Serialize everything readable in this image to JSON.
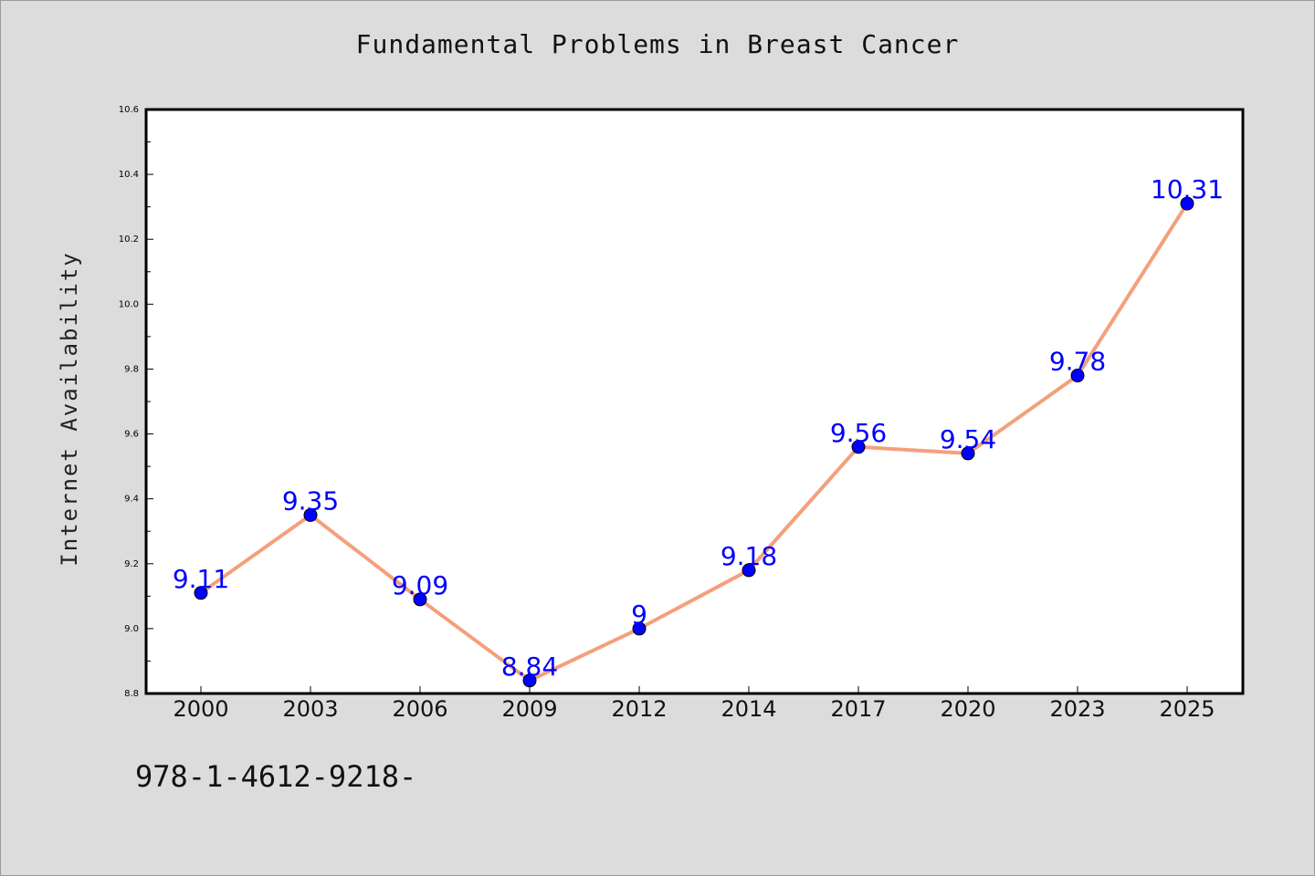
{
  "chart_data": {
    "type": "line",
    "title": "Fundamental Problems in Breast Cancer",
    "ylabel": "Internet Availability",
    "xlabel": "",
    "categories": [
      "2000",
      "2003",
      "2006",
      "2009",
      "2012",
      "2014",
      "2017",
      "2020",
      "2023",
      "2025"
    ],
    "series": [
      {
        "values": [
          9.11,
          9.35,
          9.09,
          8.84,
          9.0,
          9.18,
          9.56,
          9.54,
          9.78,
          10.31
        ],
        "data_labels": [
          "9.11",
          "9.35",
          "9.09",
          "8.84",
          "9",
          "9.18",
          "9.56",
          "9.54",
          "9.78",
          "10.31"
        ],
        "line_color": "#f4a07c",
        "marker_color": "#0000ff"
      }
    ],
    "ylim": [
      8.8,
      10.6
    ],
    "yticks": [
      "8.8",
      "9.0",
      "9.2",
      "9.4",
      "9.6",
      "9.8",
      "10.0",
      "10.2",
      "10.4",
      "10.6"
    ],
    "grid": false,
    "legend": "none"
  },
  "footer_text": "978-1-4612-9218-",
  "colors": {
    "background": "#dcdcdc",
    "plot_background": "#ffffff",
    "axis": "#000000"
  }
}
